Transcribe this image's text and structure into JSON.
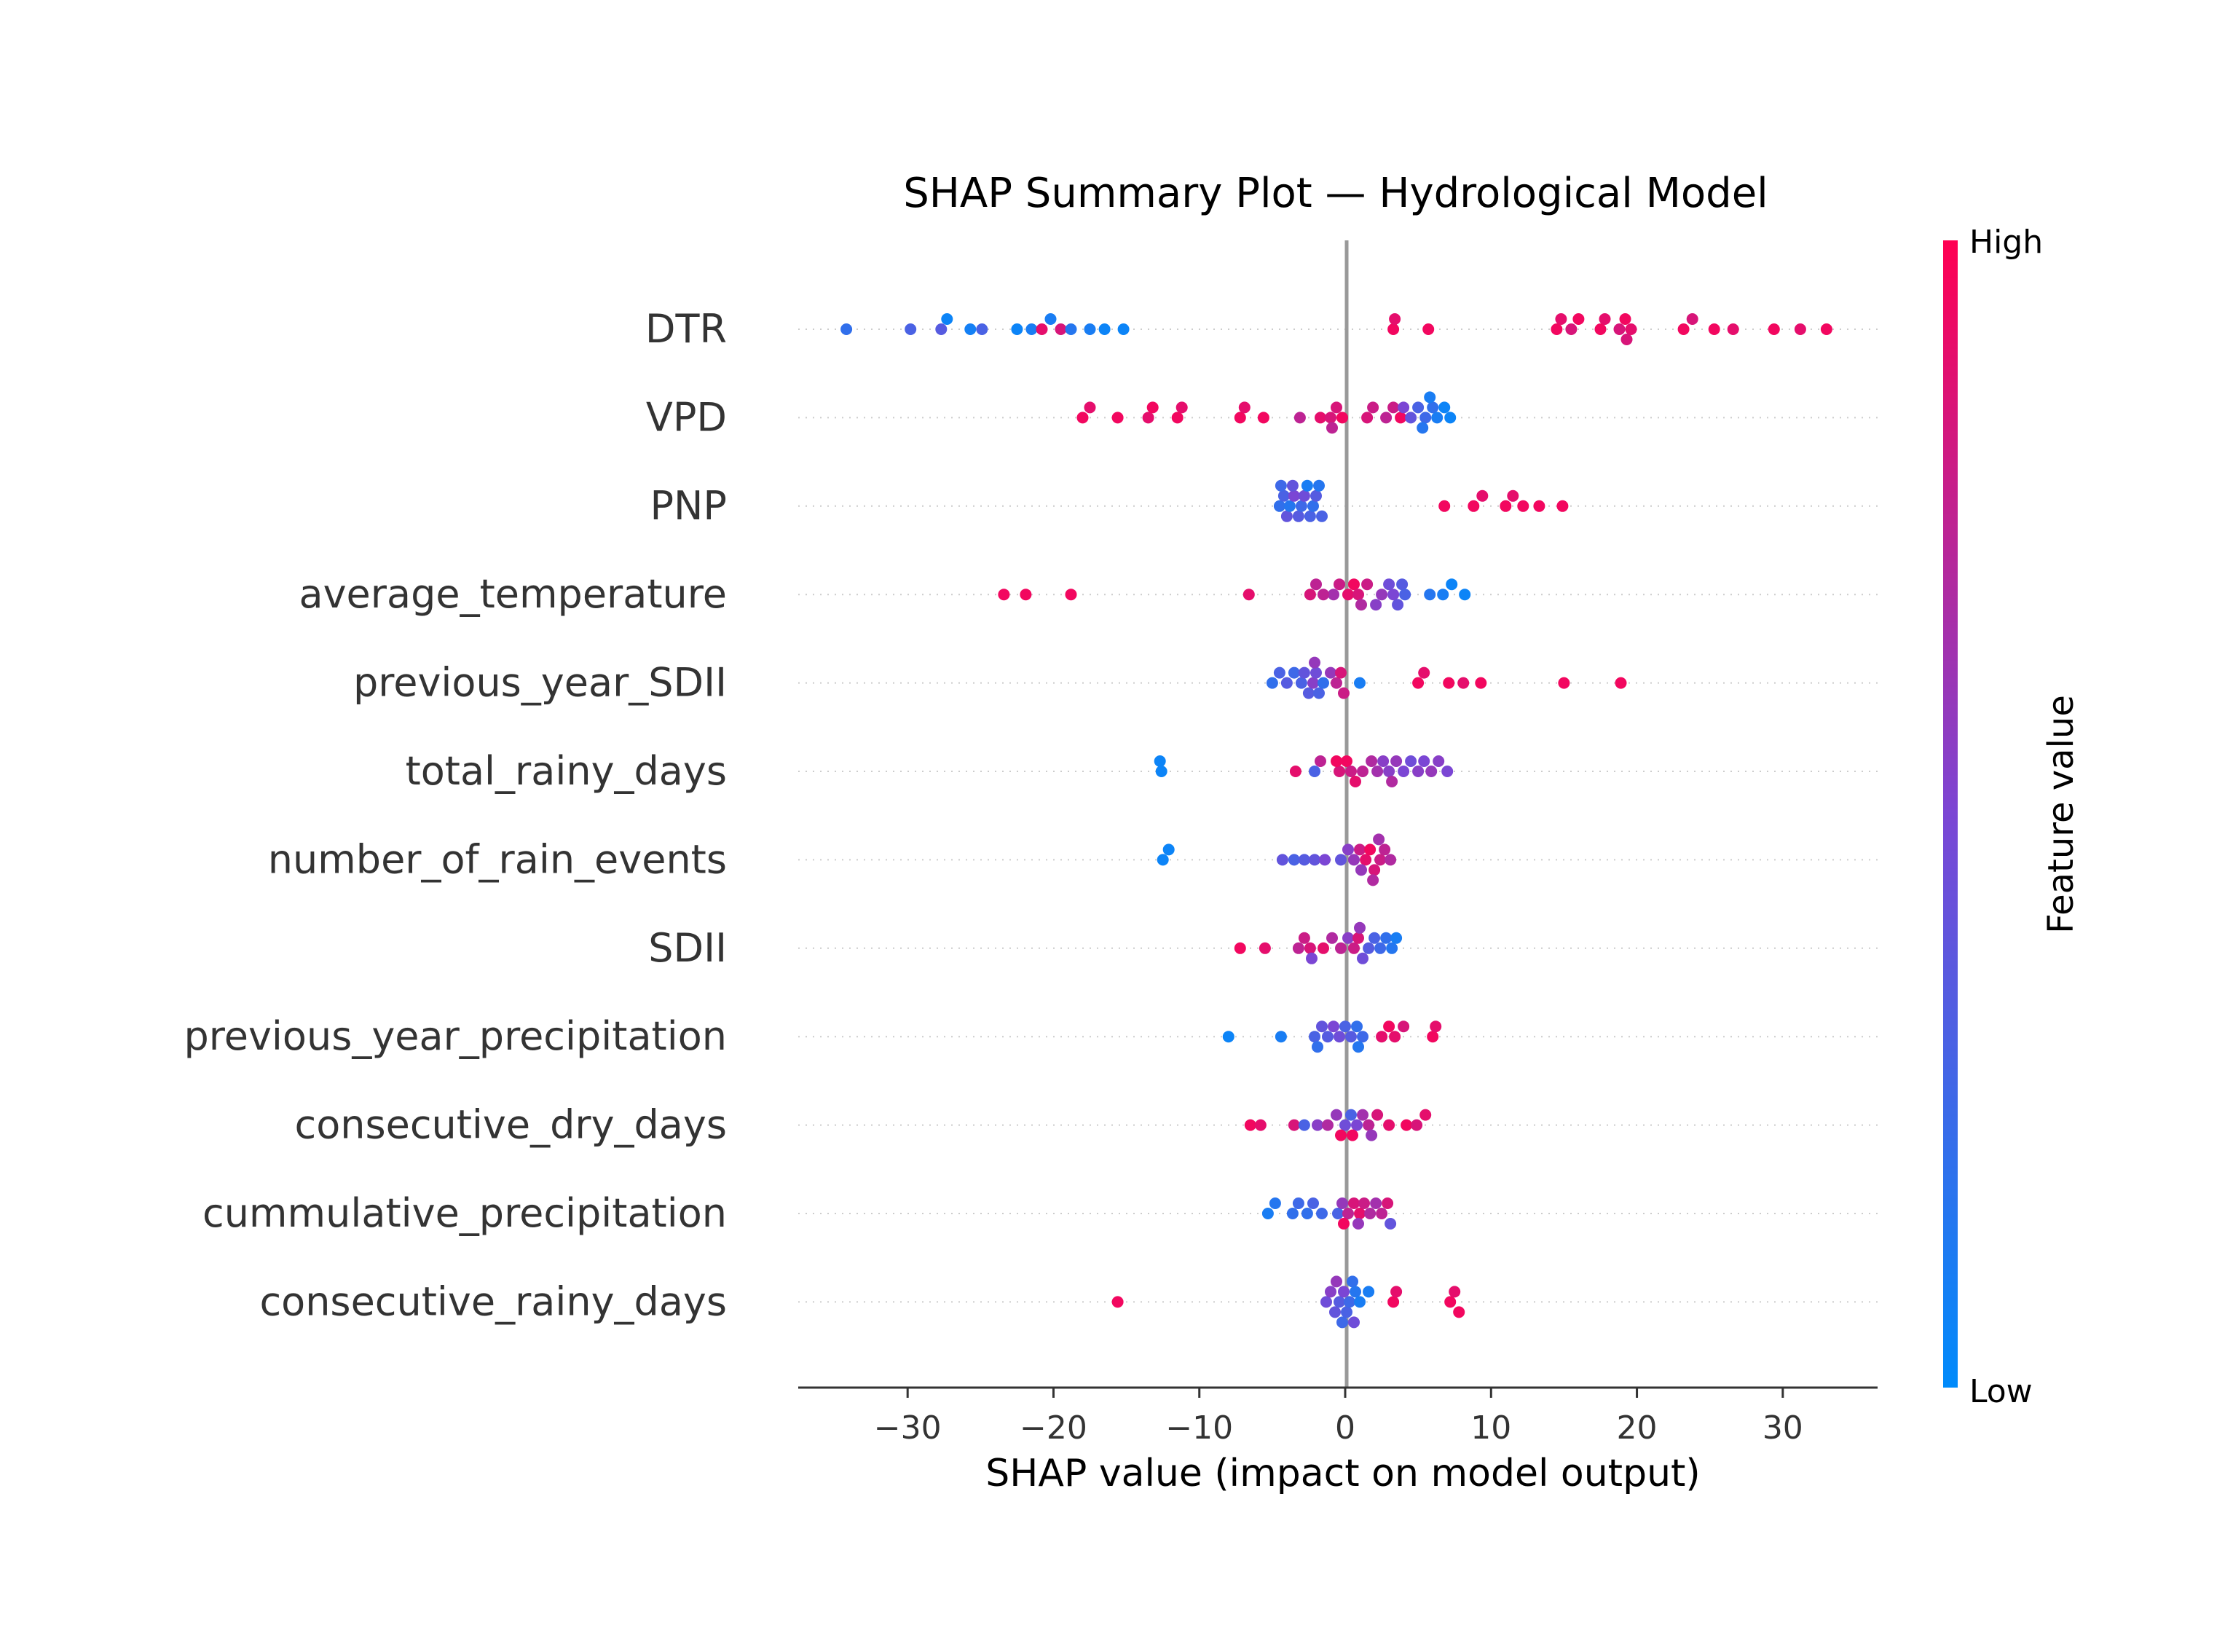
{
  "chart_data": {
    "type": "scatter",
    "title": "SHAP Summary Plot — Hydrological Model",
    "xlabel": "SHAP value (impact on model output)",
    "xlim": [
      -37.5,
      36.5
    ],
    "xticks": [
      -30,
      -20,
      -10,
      0,
      10,
      20,
      30
    ],
    "xtick_labels": [
      "−30",
      "−20",
      "−10",
      "0",
      "10",
      "20",
      "30"
    ],
    "colorbar": {
      "label": "Feature value",
      "high": "High",
      "low": "Low",
      "low_color": "#008bfb",
      "high_color": "#ff0052"
    },
    "features": [
      {
        "name": "DTR",
        "points": [
          [
            -34.2,
            0.2
          ],
          [
            -29.8,
            0.3
          ],
          [
            -27.7,
            0.35
          ],
          [
            -27.3,
            0.05
          ],
          [
            -25.7,
            0.08
          ],
          [
            -24.9,
            0.3
          ],
          [
            -22.5,
            0.05
          ],
          [
            -21.5,
            0.1
          ],
          [
            -20.8,
            0.9
          ],
          [
            -20.2,
            0.1
          ],
          [
            -19.5,
            0.85
          ],
          [
            -18.8,
            0.15
          ],
          [
            -17.5,
            0.1
          ],
          [
            -16.5,
            0.05
          ],
          [
            -15.2,
            0.05
          ],
          [
            3.3,
            0.95
          ],
          [
            3.4,
            0.9
          ],
          [
            5.7,
            0.95
          ],
          [
            14.5,
            0.95
          ],
          [
            14.8,
            0.9
          ],
          [
            15.5,
            0.85
          ],
          [
            16.0,
            0.95
          ],
          [
            17.5,
            0.95
          ],
          [
            17.8,
            0.9
          ],
          [
            18.8,
            0.85
          ],
          [
            19.2,
            0.95
          ],
          [
            19.6,
            0.9
          ],
          [
            19.3,
            0.85
          ],
          [
            23.2,
            0.95
          ],
          [
            23.8,
            0.85
          ],
          [
            25.3,
            0.95
          ],
          [
            26.6,
            0.9
          ],
          [
            29.4,
            0.95
          ],
          [
            31.2,
            0.9
          ],
          [
            33.0,
            0.95
          ]
        ]
      },
      {
        "name": "VPD",
        "points": [
          [
            -18.0,
            0.95
          ],
          [
            -17.5,
            0.9
          ],
          [
            -15.6,
            0.95
          ],
          [
            -13.5,
            0.9
          ],
          [
            -13.2,
            0.95
          ],
          [
            -11.5,
            0.95
          ],
          [
            -11.2,
            0.9
          ],
          [
            -7.2,
            0.95
          ],
          [
            -6.9,
            0.9
          ],
          [
            -5.6,
            0.95
          ],
          [
            -3.1,
            0.75
          ],
          [
            -1.7,
            0.9
          ],
          [
            -1.0,
            0.85
          ],
          [
            -0.6,
            0.85
          ],
          [
            -0.2,
            0.95
          ],
          [
            1.5,
            0.85
          ],
          [
            1.9,
            0.8
          ],
          [
            2.8,
            0.75
          ],
          [
            3.3,
            0.8
          ],
          [
            3.8,
            0.95
          ],
          [
            4.0,
            0.5
          ],
          [
            4.5,
            0.4
          ],
          [
            5.0,
            0.3
          ],
          [
            5.5,
            0.25
          ],
          [
            6.0,
            0.2
          ],
          [
            6.3,
            0.1
          ],
          [
            6.8,
            0.05
          ],
          [
            7.2,
            0.05
          ],
          [
            5.3,
            0.15
          ],
          [
            5.8,
            0.1
          ],
          [
            -0.9,
            0.75
          ]
        ]
      },
      {
        "name": "PNP",
        "points": [
          [
            -4.5,
            0.2
          ],
          [
            -4.2,
            0.3
          ],
          [
            -4.0,
            0.4
          ],
          [
            -3.8,
            0.15
          ],
          [
            -3.5,
            0.5
          ],
          [
            -3.2,
            0.35
          ],
          [
            -3.0,
            0.25
          ],
          [
            -2.8,
            0.45
          ],
          [
            -2.6,
            0.1
          ],
          [
            -2.4,
            0.3
          ],
          [
            -2.2,
            0.2
          ],
          [
            -2.0,
            0.35
          ],
          [
            -1.8,
            0.15
          ],
          [
            -3.6,
            0.4
          ],
          [
            -4.4,
            0.25
          ],
          [
            -1.6,
            0.3
          ],
          [
            6.8,
            0.95
          ],
          [
            8.8,
            0.95
          ],
          [
            9.4,
            0.9
          ],
          [
            11.0,
            0.95
          ],
          [
            11.5,
            0.9
          ],
          [
            12.2,
            0.95
          ],
          [
            13.3,
            0.95
          ],
          [
            14.9,
            0.95
          ]
        ]
      },
      {
        "name": "average_temperature",
        "points": [
          [
            -23.4,
            0.95
          ],
          [
            -21.9,
            0.95
          ],
          [
            -18.8,
            0.95
          ],
          [
            -6.6,
            0.9
          ],
          [
            -2.4,
            0.85
          ],
          [
            -2.0,
            0.75
          ],
          [
            -0.8,
            0.65
          ],
          [
            -0.4,
            0.8
          ],
          [
            0.2,
            0.9
          ],
          [
            0.6,
            0.95
          ],
          [
            0.9,
            0.85
          ],
          [
            1.5,
            0.8
          ],
          [
            2.5,
            0.6
          ],
          [
            3.0,
            0.45
          ],
          [
            3.3,
            0.5
          ],
          [
            3.6,
            0.4
          ],
          [
            3.9,
            0.35
          ],
          [
            4.1,
            0.3
          ],
          [
            5.8,
            0.15
          ],
          [
            6.7,
            0.1
          ],
          [
            7.3,
            0.05
          ],
          [
            8.2,
            0.05
          ],
          [
            -1.5,
            0.75
          ],
          [
            1.1,
            0.7
          ],
          [
            2.1,
            0.55
          ]
        ]
      },
      {
        "name": "previous_year_SDII",
        "points": [
          [
            -5.0,
            0.2
          ],
          [
            -4.5,
            0.3
          ],
          [
            -4.0,
            0.35
          ],
          [
            -3.5,
            0.25
          ],
          [
            -3.0,
            0.3
          ],
          [
            -2.8,
            0.4
          ],
          [
            -2.5,
            0.35
          ],
          [
            -2.2,
            0.55
          ],
          [
            -2.0,
            0.45
          ],
          [
            -1.8,
            0.3
          ],
          [
            -1.5,
            0.2
          ],
          [
            -1.0,
            0.6
          ],
          [
            -0.6,
            0.75
          ],
          [
            -0.3,
            0.85
          ],
          [
            -0.1,
            0.8
          ],
          [
            1.0,
            0.1
          ],
          [
            -2.1,
            0.6
          ],
          [
            5.0,
            0.95
          ],
          [
            5.4,
            0.9
          ],
          [
            7.1,
            0.95
          ],
          [
            8.1,
            0.9
          ],
          [
            9.3,
            0.95
          ],
          [
            15.0,
            0.95
          ],
          [
            18.9,
            0.95
          ]
        ]
      },
      {
        "name": "total_rainy_days",
        "points": [
          [
            -12.6,
            0.05
          ],
          [
            -12.7,
            0.05
          ],
          [
            -3.4,
            0.9
          ],
          [
            -2.1,
            0.3
          ],
          [
            -1.7,
            0.75
          ],
          [
            -0.4,
            0.85
          ],
          [
            0.1,
            0.95
          ],
          [
            0.4,
            0.8
          ],
          [
            0.7,
            0.9
          ],
          [
            1.2,
            0.75
          ],
          [
            1.8,
            0.7
          ],
          [
            2.2,
            0.65
          ],
          [
            2.6,
            0.55
          ],
          [
            3.0,
            0.55
          ],
          [
            3.5,
            0.6
          ],
          [
            4.0,
            0.5
          ],
          [
            4.5,
            0.45
          ],
          [
            5.0,
            0.55
          ],
          [
            5.4,
            0.5
          ],
          [
            5.9,
            0.6
          ],
          [
            6.4,
            0.55
          ],
          [
            7.0,
            0.5
          ],
          [
            3.2,
            0.7
          ],
          [
            -0.6,
            0.95
          ]
        ]
      },
      {
        "name": "number_of_rain_events",
        "points": [
          [
            -12.5,
            0.05
          ],
          [
            -12.1,
            0.05
          ],
          [
            -4.3,
            0.4
          ],
          [
            -3.5,
            0.3
          ],
          [
            -2.8,
            0.35
          ],
          [
            -2.1,
            0.4
          ],
          [
            -1.4,
            0.5
          ],
          [
            -0.3,
            0.4
          ],
          [
            0.2,
            0.55
          ],
          [
            0.6,
            0.6
          ],
          [
            1.0,
            0.8
          ],
          [
            1.4,
            0.9
          ],
          [
            1.7,
            0.95
          ],
          [
            2.0,
            0.85
          ],
          [
            2.4,
            0.8
          ],
          [
            2.7,
            0.75
          ],
          [
            3.1,
            0.7
          ],
          [
            2.3,
            0.65
          ],
          [
            1.9,
            0.7
          ],
          [
            1.1,
            0.6
          ]
        ]
      },
      {
        "name": "SDII",
        "points": [
          [
            -7.2,
            0.95
          ],
          [
            -5.5,
            0.9
          ],
          [
            -3.2,
            0.75
          ],
          [
            -2.8,
            0.8
          ],
          [
            -2.4,
            0.85
          ],
          [
            -1.5,
            0.9
          ],
          [
            -0.9,
            0.7
          ],
          [
            -0.3,
            0.75
          ],
          [
            0.2,
            0.55
          ],
          [
            0.6,
            0.8
          ],
          [
            0.9,
            0.85
          ],
          [
            1.2,
            0.45
          ],
          [
            1.6,
            0.35
          ],
          [
            2.0,
            0.3
          ],
          [
            2.4,
            0.25
          ],
          [
            2.8,
            0.2
          ],
          [
            3.2,
            0.15
          ],
          [
            3.5,
            0.1
          ],
          [
            -2.3,
            0.5
          ],
          [
            1.0,
            0.6
          ]
        ]
      },
      {
        "name": "previous_year_precipitation",
        "points": [
          [
            -8.0,
            0.05
          ],
          [
            -4.4,
            0.1
          ],
          [
            -2.1,
            0.3
          ],
          [
            -1.6,
            0.4
          ],
          [
            -1.2,
            0.35
          ],
          [
            -0.8,
            0.5
          ],
          [
            -0.4,
            0.45
          ],
          [
            0.0,
            0.3
          ],
          [
            0.4,
            0.35
          ],
          [
            0.8,
            0.2
          ],
          [
            1.2,
            0.25
          ],
          [
            2.5,
            0.9
          ],
          [
            3.0,
            0.95
          ],
          [
            3.4,
            0.9
          ],
          [
            4.0,
            0.85
          ],
          [
            6.0,
            0.95
          ],
          [
            6.2,
            0.9
          ],
          [
            -1.9,
            0.2
          ],
          [
            0.9,
            0.15
          ]
        ]
      },
      {
        "name": "consecutive_dry_days",
        "points": [
          [
            -6.5,
            0.95
          ],
          [
            -5.8,
            0.9
          ],
          [
            -3.5,
            0.85
          ],
          [
            -2.8,
            0.3
          ],
          [
            -1.9,
            0.55
          ],
          [
            -1.2,
            0.7
          ],
          [
            -0.6,
            0.6
          ],
          [
            0.0,
            0.45
          ],
          [
            0.4,
            0.3
          ],
          [
            0.8,
            0.5
          ],
          [
            1.2,
            0.65
          ],
          [
            1.6,
            0.75
          ],
          [
            2.2,
            0.85
          ],
          [
            3.0,
            0.9
          ],
          [
            4.2,
            0.95
          ],
          [
            4.9,
            0.85
          ],
          [
            5.5,
            0.9
          ],
          [
            1.8,
            0.6
          ],
          [
            -0.3,
            0.95
          ],
          [
            0.5,
            0.95
          ]
        ]
      },
      {
        "name": "cummulative_precipitation",
        "points": [
          [
            -5.3,
            0.1
          ],
          [
            -4.8,
            0.15
          ],
          [
            -3.6,
            0.2
          ],
          [
            -3.2,
            0.25
          ],
          [
            -2.6,
            0.2
          ],
          [
            -2.2,
            0.3
          ],
          [
            -1.6,
            0.25
          ],
          [
            -0.5,
            0.3
          ],
          [
            -0.2,
            0.6
          ],
          [
            0.2,
            0.75
          ],
          [
            0.6,
            0.85
          ],
          [
            1.0,
            0.9
          ],
          [
            1.3,
            0.8
          ],
          [
            1.7,
            0.7
          ],
          [
            2.1,
            0.65
          ],
          [
            2.5,
            0.75
          ],
          [
            2.9,
            0.85
          ],
          [
            3.1,
            0.4
          ],
          [
            0.9,
            0.6
          ],
          [
            -0.1,
            0.95
          ]
        ]
      },
      {
        "name": "consecutive_rainy_days",
        "points": [
          [
            -15.6,
            0.95
          ],
          [
            -1.3,
            0.45
          ],
          [
            -1.0,
            0.55
          ],
          [
            -0.7,
            0.4
          ],
          [
            -0.4,
            0.35
          ],
          [
            -0.1,
            0.5
          ],
          [
            0.1,
            0.3
          ],
          [
            0.3,
            0.25
          ],
          [
            0.5,
            0.2
          ],
          [
            0.7,
            0.15
          ],
          [
            1.0,
            0.1
          ],
          [
            1.6,
            0.1
          ],
          [
            3.3,
            0.95
          ],
          [
            3.5,
            0.9
          ],
          [
            7.2,
            0.95
          ],
          [
            7.5,
            0.9
          ],
          [
            7.8,
            0.95
          ],
          [
            -0.6,
            0.6
          ],
          [
            0.6,
            0.45
          ],
          [
            -0.2,
            0.25
          ]
        ]
      }
    ]
  }
}
